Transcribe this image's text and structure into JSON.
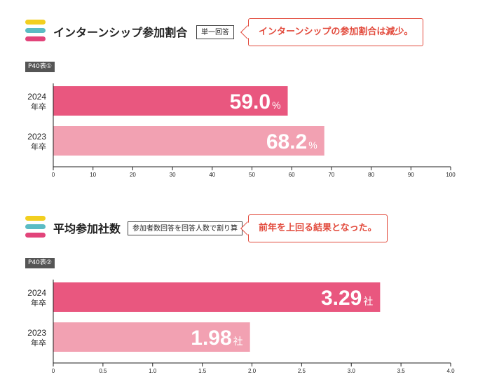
{
  "sections": [
    {
      "heading": "インターンシップ参加割合",
      "tag": "単一回答",
      "callout": "インターンシップの参加割合は減少。",
      "badge": "P40表①"
    },
    {
      "heading": "平均参加社数",
      "tag": "参加者数回答を回答人数で割り算",
      "callout": "前年を上回る結果となった。",
      "badge": "P40表②"
    }
  ],
  "colors": {
    "bar_2024": "#e9577f",
    "bar_2023": "#f2a1b2",
    "callout": "#e24a3c",
    "stripes": [
      "#f2cf1f",
      "#5bbcc4",
      "#e2447a"
    ]
  },
  "chart_data": [
    {
      "type": "bar",
      "orientation": "horizontal",
      "categories": [
        [
          "2024",
          "年卒"
        ],
        [
          "2023",
          "年卒"
        ]
      ],
      "values": [
        59.0,
        68.2
      ],
      "value_labels": [
        "59.0",
        "68.2"
      ],
      "unit": "%",
      "xlim": [
        0,
        100
      ],
      "xticks": [
        "0",
        "10",
        "20",
        "30",
        "40",
        "50",
        "60",
        "70",
        "80",
        "90",
        "100"
      ],
      "grid": false
    },
    {
      "type": "bar",
      "orientation": "horizontal",
      "categories": [
        [
          "2024",
          "年卒"
        ],
        [
          "2023",
          "年卒"
        ]
      ],
      "values": [
        3.29,
        1.98
      ],
      "value_labels": [
        "3.29",
        "1.98"
      ],
      "unit": "社",
      "xlim": [
        0,
        4.0
      ],
      "xticks": [
        "0",
        "0.5",
        "1.0",
        "1.5",
        "2.0",
        "2.5",
        "3.0",
        "3.5",
        "4.0"
      ],
      "grid": false
    }
  ]
}
